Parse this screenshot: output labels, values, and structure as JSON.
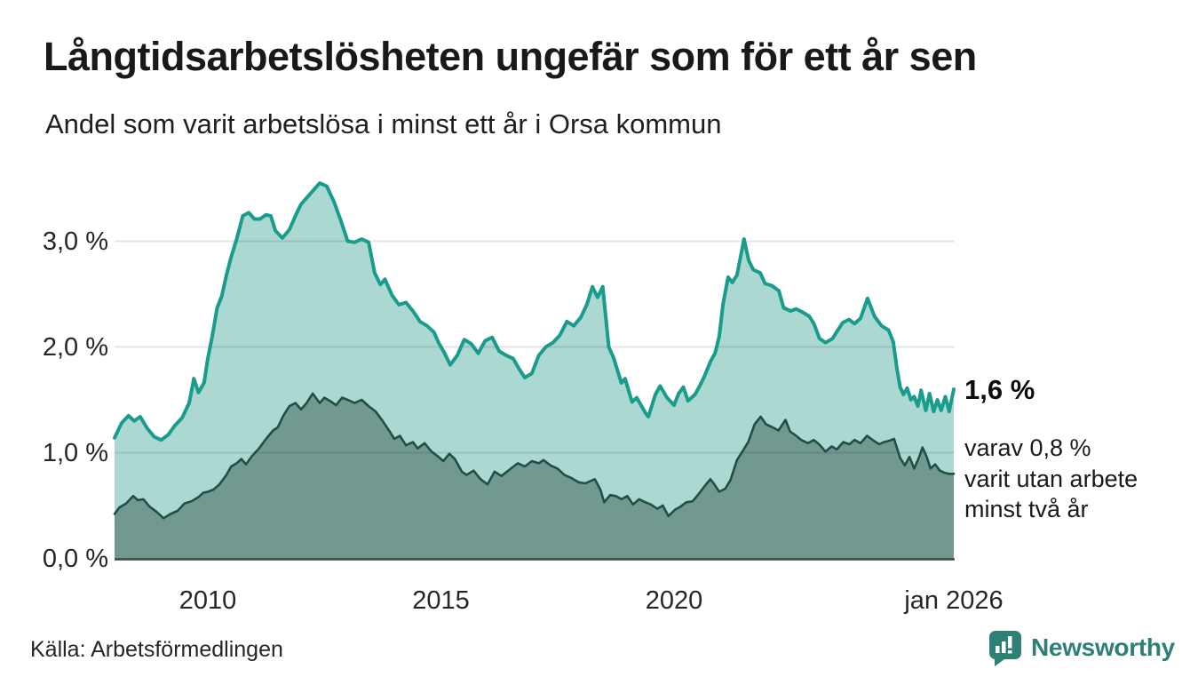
{
  "header": {
    "title": "Långtidsarbetslösheten ungefär som för ett år sen",
    "subtitle": "Andel som varit arbetslösa i minst ett år i Orsa kommun"
  },
  "colors": {
    "line_total": "#1A9C8C",
    "fill_total": "#ABD8D1",
    "line_two_years": "#1F4F48",
    "fill_two_years": "#72998F",
    "axis": "#3D4543",
    "grid": "rgba(0,0,0,0.10)",
    "text": "#191919",
    "brand": "#2E8077"
  },
  "chart_data": {
    "type": "area",
    "title": "Långtidsarbetslösheten ungefär som för ett år sen",
    "subtitle": "Andel som varit arbetslösa i minst ett år i Orsa kommun",
    "unit": "%",
    "grid": true,
    "legend_position": "right-annotations",
    "x_range": [
      2008.0,
      2026.0
    ],
    "y_range": [
      0.0,
      3.66
    ],
    "y_ticks": [
      "3,0 %",
      "2,0 %",
      "1,0 %",
      "0,0 %"
    ],
    "y_tick_values": [
      3,
      2,
      1,
      0
    ],
    "x_ticks": [
      "2010",
      "2015",
      "2020",
      "jan 2026"
    ],
    "x_tick_years": [
      2010,
      2015,
      2020,
      2026
    ],
    "annotations": {
      "end_label_total": "1,6 %",
      "end_label_secondary": "varav 0,8 %\nvarit utan arbete\nminst två år"
    },
    "series": [
      {
        "name": "Andel arbetslösa minst ett år",
        "end_value": "1,6 %",
        "points": [
          [
            2008.0,
            1.14
          ],
          [
            2008.15,
            1.28
          ],
          [
            2008.3,
            1.35
          ],
          [
            2008.42,
            1.3
          ],
          [
            2008.55,
            1.34
          ],
          [
            2008.7,
            1.23
          ],
          [
            2008.85,
            1.15
          ],
          [
            2009.0,
            1.12
          ],
          [
            2009.15,
            1.17
          ],
          [
            2009.3,
            1.26
          ],
          [
            2009.45,
            1.33
          ],
          [
            2009.6,
            1.47
          ],
          [
            2009.7,
            1.7
          ],
          [
            2009.8,
            1.57
          ],
          [
            2009.92,
            1.66
          ],
          [
            2010.0,
            1.89
          ],
          [
            2010.1,
            2.11
          ],
          [
            2010.2,
            2.37
          ],
          [
            2010.3,
            2.48
          ],
          [
            2010.4,
            2.68
          ],
          [
            2010.5,
            2.85
          ],
          [
            2010.62,
            3.02
          ],
          [
            2010.75,
            3.24
          ],
          [
            2010.88,
            3.27
          ],
          [
            2011.0,
            3.21
          ],
          [
            2011.12,
            3.21
          ],
          [
            2011.25,
            3.25
          ],
          [
            2011.35,
            3.24
          ],
          [
            2011.45,
            3.1
          ],
          [
            2011.6,
            3.03
          ],
          [
            2011.75,
            3.11
          ],
          [
            2011.88,
            3.24
          ],
          [
            2012.0,
            3.35
          ],
          [
            2012.2,
            3.45
          ],
          [
            2012.4,
            3.55
          ],
          [
            2012.55,
            3.52
          ],
          [
            2012.7,
            3.38
          ],
          [
            2012.85,
            3.2
          ],
          [
            2013.0,
            3.0
          ],
          [
            2013.15,
            2.99
          ],
          [
            2013.3,
            3.02
          ],
          [
            2013.45,
            2.99
          ],
          [
            2013.58,
            2.7
          ],
          [
            2013.7,
            2.59
          ],
          [
            2013.8,
            2.64
          ],
          [
            2013.95,
            2.49
          ],
          [
            2014.1,
            2.4
          ],
          [
            2014.25,
            2.42
          ],
          [
            2014.4,
            2.34
          ],
          [
            2014.55,
            2.24
          ],
          [
            2014.7,
            2.2
          ],
          [
            2014.85,
            2.14
          ],
          [
            2014.95,
            2.04
          ],
          [
            2015.08,
            1.94
          ],
          [
            2015.2,
            1.83
          ],
          [
            2015.35,
            1.92
          ],
          [
            2015.5,
            2.07
          ],
          [
            2015.65,
            2.03
          ],
          [
            2015.8,
            1.94
          ],
          [
            2015.95,
            2.06
          ],
          [
            2016.1,
            2.09
          ],
          [
            2016.25,
            1.96
          ],
          [
            2016.4,
            1.92
          ],
          [
            2016.55,
            1.89
          ],
          [
            2016.68,
            1.79
          ],
          [
            2016.8,
            1.71
          ],
          [
            2016.95,
            1.75
          ],
          [
            2017.1,
            1.92
          ],
          [
            2017.25,
            2.0
          ],
          [
            2017.4,
            2.04
          ],
          [
            2017.55,
            2.11
          ],
          [
            2017.7,
            2.24
          ],
          [
            2017.85,
            2.2
          ],
          [
            2018.0,
            2.28
          ],
          [
            2018.13,
            2.4
          ],
          [
            2018.25,
            2.57
          ],
          [
            2018.36,
            2.47
          ],
          [
            2018.47,
            2.57
          ],
          [
            2018.6,
            2.0
          ],
          [
            2018.7,
            1.9
          ],
          [
            2018.87,
            1.66
          ],
          [
            2018.95,
            1.7
          ],
          [
            2019.1,
            1.48
          ],
          [
            2019.2,
            1.52
          ],
          [
            2019.38,
            1.38
          ],
          [
            2019.45,
            1.34
          ],
          [
            2019.6,
            1.55
          ],
          [
            2019.7,
            1.63
          ],
          [
            2019.85,
            1.52
          ],
          [
            2020.0,
            1.45
          ],
          [
            2020.1,
            1.56
          ],
          [
            2020.2,
            1.62
          ],
          [
            2020.3,
            1.49
          ],
          [
            2020.45,
            1.55
          ],
          [
            2020.55,
            1.63
          ],
          [
            2020.65,
            1.72
          ],
          [
            2020.78,
            1.86
          ],
          [
            2020.88,
            1.94
          ],
          [
            2020.97,
            2.1
          ],
          [
            2021.05,
            2.4
          ],
          [
            2021.16,
            2.66
          ],
          [
            2021.25,
            2.61
          ],
          [
            2021.35,
            2.68
          ],
          [
            2021.5,
            3.02
          ],
          [
            2021.6,
            2.82
          ],
          [
            2021.7,
            2.73
          ],
          [
            2021.85,
            2.7
          ],
          [
            2021.95,
            2.6
          ],
          [
            2022.1,
            2.58
          ],
          [
            2022.25,
            2.53
          ],
          [
            2022.35,
            2.37
          ],
          [
            2022.5,
            2.34
          ],
          [
            2022.62,
            2.36
          ],
          [
            2022.75,
            2.33
          ],
          [
            2022.9,
            2.29
          ],
          [
            2023.0,
            2.22
          ],
          [
            2023.12,
            2.08
          ],
          [
            2023.25,
            2.04
          ],
          [
            2023.4,
            2.08
          ],
          [
            2023.5,
            2.15
          ],
          [
            2023.62,
            2.23
          ],
          [
            2023.75,
            2.26
          ],
          [
            2023.87,
            2.22
          ],
          [
            2024.0,
            2.27
          ],
          [
            2024.15,
            2.46
          ],
          [
            2024.3,
            2.29
          ],
          [
            2024.45,
            2.2
          ],
          [
            2024.6,
            2.16
          ],
          [
            2024.7,
            2.05
          ],
          [
            2024.78,
            1.8
          ],
          [
            2024.85,
            1.62
          ],
          [
            2024.92,
            1.55
          ],
          [
            2025.0,
            1.61
          ],
          [
            2025.08,
            1.5
          ],
          [
            2025.15,
            1.53
          ],
          [
            2025.23,
            1.44
          ],
          [
            2025.3,
            1.59
          ],
          [
            2025.4,
            1.4
          ],
          [
            2025.48,
            1.56
          ],
          [
            2025.57,
            1.39
          ],
          [
            2025.65,
            1.5
          ],
          [
            2025.73,
            1.4
          ],
          [
            2025.82,
            1.53
          ],
          [
            2025.9,
            1.39
          ],
          [
            2026.0,
            1.6
          ]
        ]
      },
      {
        "name": "Andel som varit utan arbete minst två år",
        "end_value": "0,8 %",
        "points": [
          [
            2008.0,
            0.42
          ],
          [
            2008.1,
            0.48
          ],
          [
            2008.25,
            0.52
          ],
          [
            2008.4,
            0.59
          ],
          [
            2008.5,
            0.55
          ],
          [
            2008.62,
            0.56
          ],
          [
            2008.75,
            0.49
          ],
          [
            2008.9,
            0.44
          ],
          [
            2009.05,
            0.38
          ],
          [
            2009.2,
            0.42
          ],
          [
            2009.35,
            0.45
          ],
          [
            2009.5,
            0.52
          ],
          [
            2009.65,
            0.54
          ],
          [
            2009.8,
            0.58
          ],
          [
            2009.9,
            0.62
          ],
          [
            2010.0,
            0.63
          ],
          [
            2010.12,
            0.65
          ],
          [
            2010.25,
            0.7
          ],
          [
            2010.4,
            0.79
          ],
          [
            2010.5,
            0.87
          ],
          [
            2010.62,
            0.9
          ],
          [
            2010.72,
            0.94
          ],
          [
            2010.82,
            0.89
          ],
          [
            2010.95,
            0.97
          ],
          [
            2011.1,
            1.04
          ],
          [
            2011.25,
            1.13
          ],
          [
            2011.4,
            1.21
          ],
          [
            2011.5,
            1.24
          ],
          [
            2011.62,
            1.35
          ],
          [
            2011.75,
            1.44
          ],
          [
            2011.88,
            1.47
          ],
          [
            2012.0,
            1.41
          ],
          [
            2012.12,
            1.47
          ],
          [
            2012.25,
            1.56
          ],
          [
            2012.4,
            1.47
          ],
          [
            2012.5,
            1.52
          ],
          [
            2012.62,
            1.49
          ],
          [
            2012.75,
            1.45
          ],
          [
            2012.88,
            1.52
          ],
          [
            2013.0,
            1.5
          ],
          [
            2013.15,
            1.47
          ],
          [
            2013.3,
            1.5
          ],
          [
            2013.45,
            1.44
          ],
          [
            2013.6,
            1.39
          ],
          [
            2013.75,
            1.3
          ],
          [
            2013.9,
            1.2
          ],
          [
            2014.0,
            1.13
          ],
          [
            2014.12,
            1.16
          ],
          [
            2014.25,
            1.07
          ],
          [
            2014.4,
            1.1
          ],
          [
            2014.5,
            1.04
          ],
          [
            2014.65,
            1.09
          ],
          [
            2014.8,
            1.01
          ],
          [
            2014.95,
            0.96
          ],
          [
            2015.05,
            0.92
          ],
          [
            2015.18,
            0.99
          ],
          [
            2015.3,
            0.94
          ],
          [
            2015.45,
            0.82
          ],
          [
            2015.55,
            0.79
          ],
          [
            2015.7,
            0.83
          ],
          [
            2015.85,
            0.75
          ],
          [
            2016.0,
            0.7
          ],
          [
            2016.15,
            0.82
          ],
          [
            2016.3,
            0.78
          ],
          [
            2016.5,
            0.85
          ],
          [
            2016.65,
            0.9
          ],
          [
            2016.8,
            0.87
          ],
          [
            2016.95,
            0.92
          ],
          [
            2017.1,
            0.9
          ],
          [
            2017.2,
            0.93
          ],
          [
            2017.35,
            0.88
          ],
          [
            2017.5,
            0.85
          ],
          [
            2017.65,
            0.79
          ],
          [
            2017.8,
            0.76
          ],
          [
            2017.95,
            0.72
          ],
          [
            2018.1,
            0.71
          ],
          [
            2018.3,
            0.75
          ],
          [
            2018.42,
            0.65
          ],
          [
            2018.5,
            0.53
          ],
          [
            2018.63,
            0.6
          ],
          [
            2018.75,
            0.59
          ],
          [
            2018.87,
            0.56
          ],
          [
            2019.0,
            0.59
          ],
          [
            2019.12,
            0.51
          ],
          [
            2019.25,
            0.56
          ],
          [
            2019.39,
            0.53
          ],
          [
            2019.5,
            0.51
          ],
          [
            2019.64,
            0.47
          ],
          [
            2019.76,
            0.5
          ],
          [
            2019.88,
            0.4
          ],
          [
            2020.02,
            0.46
          ],
          [
            2020.14,
            0.49
          ],
          [
            2020.26,
            0.53
          ],
          [
            2020.4,
            0.54
          ],
          [
            2020.53,
            0.61
          ],
          [
            2020.65,
            0.68
          ],
          [
            2020.78,
            0.75
          ],
          [
            2020.85,
            0.71
          ],
          [
            2020.97,
            0.63
          ],
          [
            2021.1,
            0.66
          ],
          [
            2021.21,
            0.74
          ],
          [
            2021.35,
            0.93
          ],
          [
            2021.48,
            1.02
          ],
          [
            2021.59,
            1.1
          ],
          [
            2021.73,
            1.27
          ],
          [
            2021.86,
            1.34
          ],
          [
            2021.97,
            1.27
          ],
          [
            2022.11,
            1.24
          ],
          [
            2022.24,
            1.21
          ],
          [
            2022.39,
            1.31
          ],
          [
            2022.49,
            1.2
          ],
          [
            2022.62,
            1.16
          ],
          [
            2022.73,
            1.12
          ],
          [
            2022.87,
            1.09
          ],
          [
            2023.0,
            1.12
          ],
          [
            2023.11,
            1.08
          ],
          [
            2023.25,
            1.01
          ],
          [
            2023.38,
            1.06
          ],
          [
            2023.49,
            1.03
          ],
          [
            2023.63,
            1.1
          ],
          [
            2023.76,
            1.08
          ],
          [
            2023.87,
            1.12
          ],
          [
            2024.0,
            1.09
          ],
          [
            2024.14,
            1.16
          ],
          [
            2024.26,
            1.12
          ],
          [
            2024.4,
            1.08
          ],
          [
            2024.5,
            1.1
          ],
          [
            2024.6,
            1.11
          ],
          [
            2024.72,
            1.13
          ],
          [
            2024.85,
            0.95
          ],
          [
            2024.95,
            0.88
          ],
          [
            2025.05,
            0.96
          ],
          [
            2025.15,
            0.85
          ],
          [
            2025.25,
            0.95
          ],
          [
            2025.33,
            1.05
          ],
          [
            2025.42,
            0.96
          ],
          [
            2025.5,
            0.85
          ],
          [
            2025.6,
            0.89
          ],
          [
            2025.7,
            0.83
          ],
          [
            2025.8,
            0.81
          ],
          [
            2025.9,
            0.8
          ],
          [
            2026.0,
            0.8
          ]
        ]
      }
    ]
  },
  "footer": {
    "source": "Källa: Arbetsförmedlingen",
    "brand": "Newsworthy"
  }
}
